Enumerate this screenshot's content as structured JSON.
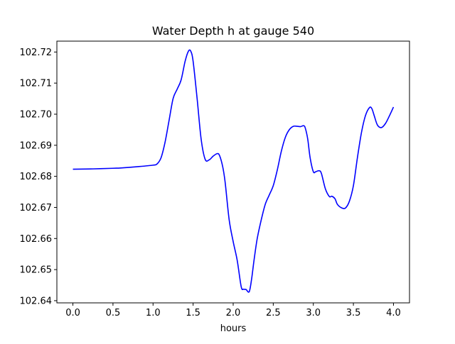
{
  "chart_data": {
    "type": "line",
    "title": "Water Depth h at gauge 540",
    "xlabel": "hours",
    "ylabel": "",
    "xlim": [
      -0.2,
      4.2
    ],
    "ylim": [
      102.6393,
      102.7235
    ],
    "grid": false,
    "legend": "none",
    "xticks": [
      0.0,
      0.5,
      1.0,
      1.5,
      2.0,
      2.5,
      3.0,
      3.5,
      4.0
    ],
    "xtick_labels": [
      "0.0",
      "0.5",
      "1.0",
      "1.5",
      "2.0",
      "2.5",
      "3.0",
      "3.5",
      "4.0"
    ],
    "yticks": [
      102.64,
      102.65,
      102.66,
      102.67,
      102.68,
      102.69,
      102.7,
      102.71,
      102.72
    ],
    "ytick_labels": [
      "102.64",
      "102.65",
      "102.66",
      "102.67",
      "102.68",
      "102.69",
      "102.70",
      "102.71",
      "102.72"
    ],
    "series": [
      {
        "color": "#0000ff",
        "x": [
          0.0,
          0.25,
          0.5,
          0.6,
          0.8,
          1.0,
          1.05,
          1.1,
          1.15,
          1.2,
          1.25,
          1.3,
          1.35,
          1.4,
          1.44,
          1.47,
          1.5,
          1.55,
          1.6,
          1.65,
          1.7,
          1.75,
          1.8,
          1.83,
          1.87,
          1.9,
          1.95,
          2.0,
          2.05,
          2.1,
          2.13,
          2.16,
          2.2,
          2.23,
          2.26,
          2.3,
          2.35,
          2.4,
          2.45,
          2.5,
          2.55,
          2.6,
          2.65,
          2.7,
          2.75,
          2.8,
          2.84,
          2.88,
          2.9,
          2.93,
          2.96,
          3.0,
          3.03,
          3.07,
          3.1,
          3.15,
          3.2,
          3.23,
          3.27,
          3.3,
          3.35,
          3.4,
          3.45,
          3.5,
          3.55,
          3.6,
          3.65,
          3.7,
          3.73,
          3.76,
          3.8,
          3.85,
          3.9,
          3.95,
          4.0
        ],
        "y": [
          102.6823,
          102.6824,
          102.6826,
          102.6827,
          102.6831,
          102.6836,
          102.684,
          102.686,
          102.691,
          102.698,
          102.705,
          102.708,
          102.711,
          102.717,
          102.7202,
          102.7203,
          102.717,
          102.705,
          102.692,
          102.6855,
          102.6853,
          102.6865,
          102.6873,
          102.6867,
          102.683,
          102.678,
          102.666,
          102.659,
          102.653,
          102.6445,
          102.6437,
          102.6436,
          102.6429,
          102.647,
          102.653,
          102.66,
          102.666,
          102.671,
          102.674,
          102.677,
          102.682,
          102.688,
          102.6925,
          102.695,
          102.6961,
          102.6961,
          102.696,
          102.6963,
          102.6955,
          102.692,
          102.686,
          102.6815,
          102.6815,
          102.6818,
          102.681,
          102.676,
          102.6735,
          102.6736,
          102.6728,
          102.671,
          102.6699,
          102.6698,
          102.672,
          102.677,
          102.686,
          102.694,
          102.6995,
          102.7021,
          102.7018,
          102.6995,
          102.6965,
          102.6957,
          102.697,
          102.6995,
          102.7023
        ]
      }
    ]
  }
}
